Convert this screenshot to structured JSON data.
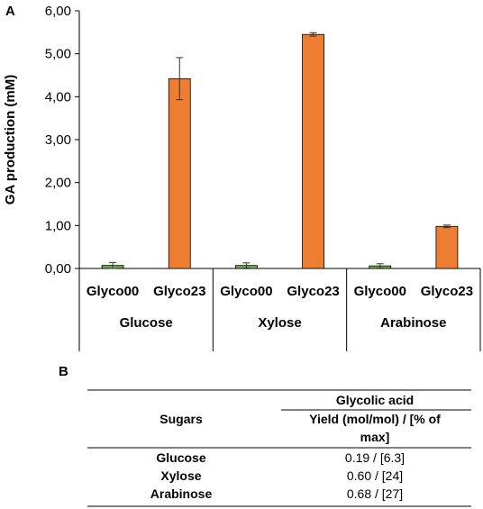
{
  "panel_a_label": "A",
  "panel_b_label": "B",
  "chart_data": {
    "type": "bar",
    "ylabel": "GA production (mM)",
    "xlabel": "",
    "ylim": [
      0,
      6
    ],
    "yticks": [
      "0,00",
      "1,00",
      "2,00",
      "3,00",
      "4,00",
      "5,00",
      "6,00"
    ],
    "groups": [
      "Glucose",
      "Xylose",
      "Arabinose"
    ],
    "categories": [
      "Glyco00",
      "Glyco23"
    ],
    "bars": [
      {
        "group": "Glucose",
        "strain": "Glyco00",
        "value": 0.07,
        "error": 0.07,
        "color": "#70ad47"
      },
      {
        "group": "Glucose",
        "strain": "Glyco23",
        "value": 4.42,
        "error": 0.49,
        "color": "#ed7d31"
      },
      {
        "group": "Xylose",
        "strain": "Glyco00",
        "value": 0.07,
        "error": 0.06,
        "color": "#70ad47"
      },
      {
        "group": "Xylose",
        "strain": "Glyco23",
        "value": 5.45,
        "error": 0.04,
        "color": "#ed7d31"
      },
      {
        "group": "Arabinose",
        "strain": "Glyco00",
        "value": 0.06,
        "error": 0.05,
        "color": "#70ad47"
      },
      {
        "group": "Arabinose",
        "strain": "Glyco23",
        "value": 0.98,
        "error": 0.03,
        "color": "#ed7d31"
      }
    ]
  },
  "table": {
    "col1_header": "Sugars",
    "col2_header": "Glycolic acid",
    "col2_subheader_line1": "Yield (mol/mol) / [% of",
    "col2_subheader_line2": "max]",
    "rows": [
      {
        "sugar": "Glucose",
        "yield": "0.19 / [6.3]"
      },
      {
        "sugar": "Xylose",
        "yield": "0.60 / [24]"
      },
      {
        "sugar": "Arabinose",
        "yield": "0.68 / [27]"
      }
    ]
  }
}
